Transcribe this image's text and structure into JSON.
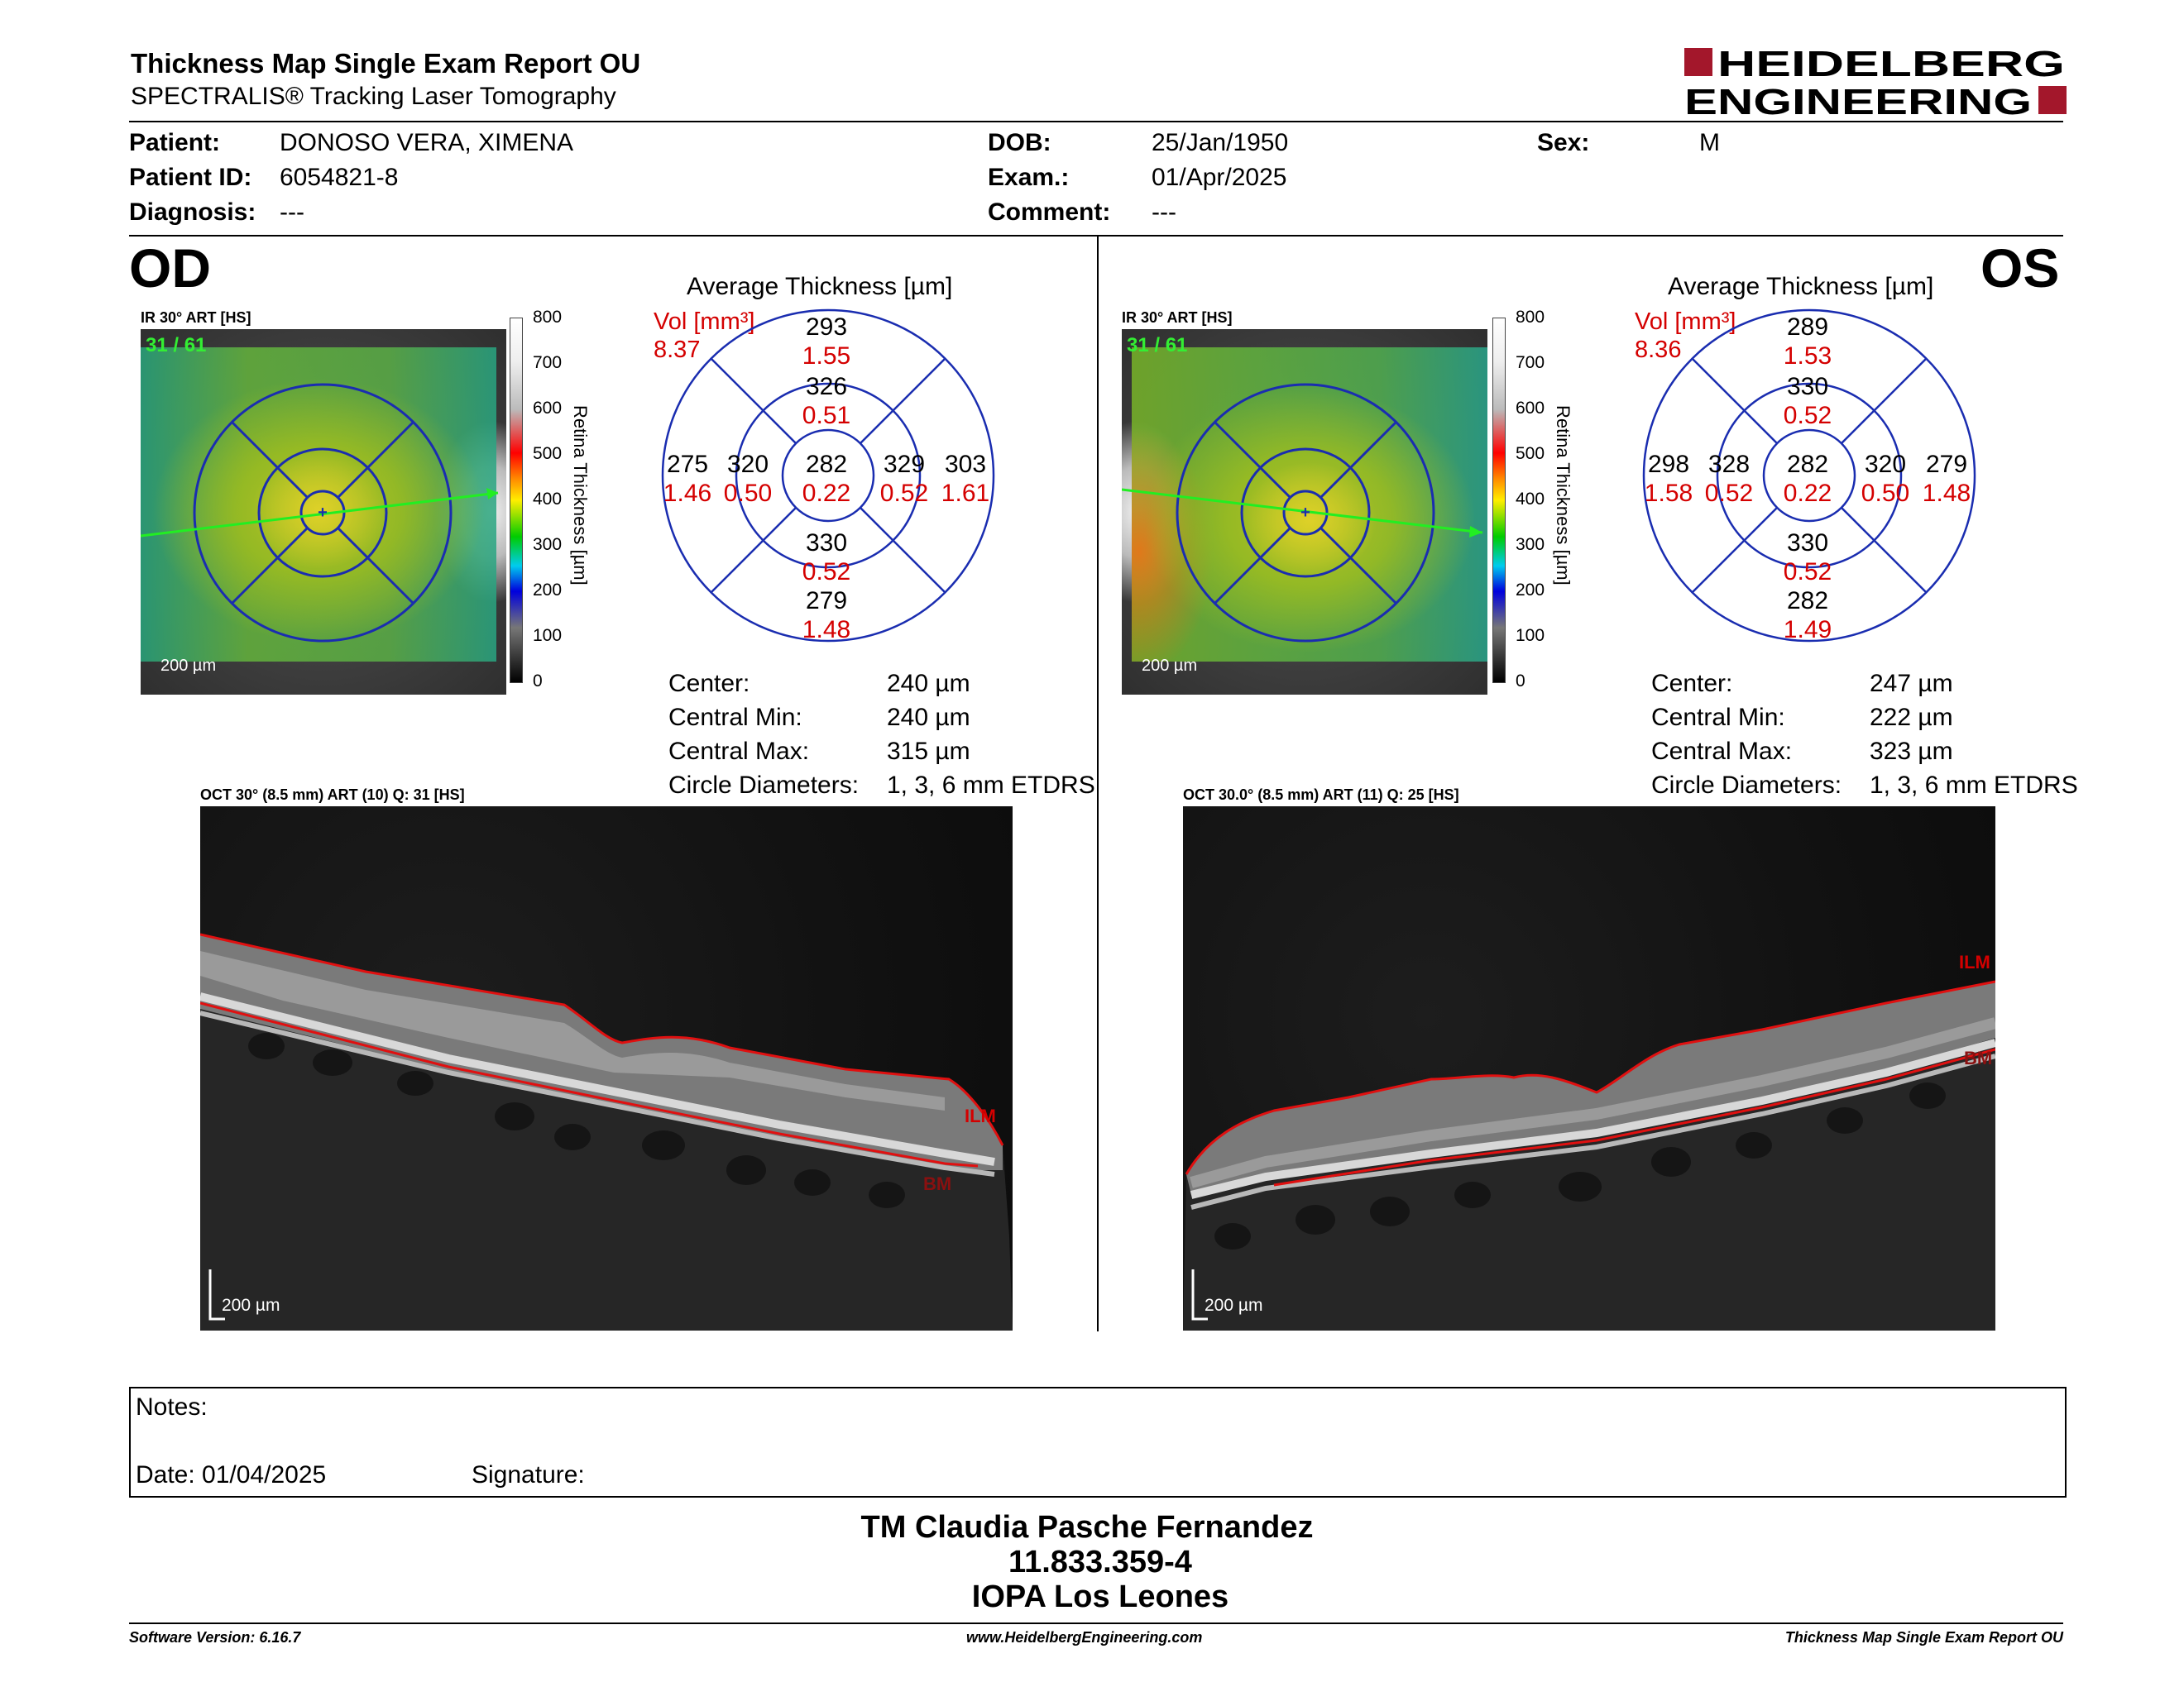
{
  "header": {
    "title": "Thickness Map Single Exam Report OU",
    "subtitle": "SPECTRALIS® Tracking Laser Tomography",
    "logo_line1": "HEIDELBERG",
    "logo_line2": "ENGINEERING"
  },
  "patient": {
    "patient_label": "Patient:",
    "patient_value": "DONOSO VERA, XIMENA",
    "id_label": "Patient ID:",
    "id_value": "6054821-8",
    "diagnosis_label": "Diagnosis:",
    "diagnosis_value": "---",
    "dob_label": "DOB:",
    "dob_value": "25/Jan/1950",
    "exam_label": "Exam.:",
    "exam_value": "01/Apr/2025",
    "comment_label": "Comment:",
    "comment_value": "---",
    "sex_label": "Sex:",
    "sex_value": "M"
  },
  "colorbar": {
    "ticks": [
      "800",
      "700",
      "600",
      "500",
      "400",
      "300",
      "200",
      "100",
      "0"
    ],
    "label": "Retina  Thickness [µm]"
  },
  "od": {
    "eye": "OD",
    "ir_caption": "IR 30° ART [HS]",
    "ir_count": "31 / 61",
    "ir_scale": "200 µm",
    "avg_title": "Average Thickness [µm]",
    "vol_label": "Vol [mm³]",
    "vol_value": "8.37",
    "grid": {
      "outer_top": "293",
      "outer_top_vol": "1.55",
      "inner_top": "326",
      "inner_top_vol": "0.51",
      "outer_left": "275",
      "outer_left_vol": "1.46",
      "inner_left": "320",
      "inner_left_vol": "0.50",
      "center": "282",
      "center_vol": "0.22",
      "inner_right": "329",
      "inner_right_vol": "0.52",
      "outer_right": "303",
      "outer_right_vol": "1.61",
      "inner_bottom": "330",
      "inner_bottom_vol": "0.52",
      "outer_bottom": "279",
      "outer_bottom_vol": "1.48"
    },
    "stats": {
      "center_label": "Center:",
      "center_value": "240 µm",
      "cmin_label": "Central Min:",
      "cmin_value": "240 µm",
      "cmax_label": "Central Max:",
      "cmax_value": "315 µm",
      "diam_label": "Circle Diameters:",
      "diam_value": "1, 3, 6 mm ETDRS"
    },
    "oct_caption": "OCT 30° (8.5 mm) ART (10) Q: 31 [HS]",
    "oct_scale": "200 µm",
    "ilm": "ILM",
    "bm": "BM"
  },
  "os": {
    "eye": "OS",
    "ir_caption": "IR 30° ART [HS]",
    "ir_count": "31 / 61",
    "ir_scale": "200 µm",
    "avg_title": "Average Thickness [µm]",
    "vol_label": "Vol [mm³]",
    "vol_value": "8.36",
    "grid": {
      "outer_top": "289",
      "outer_top_vol": "1.53",
      "inner_top": "330",
      "inner_top_vol": "0.52",
      "outer_left": "298",
      "outer_left_vol": "1.58",
      "inner_left": "328",
      "inner_left_vol": "0.52",
      "center": "282",
      "center_vol": "0.22",
      "inner_right": "320",
      "inner_right_vol": "0.50",
      "outer_right": "279",
      "outer_right_vol": "1.48",
      "inner_bottom": "330",
      "inner_bottom_vol": "0.52",
      "outer_bottom": "282",
      "outer_bottom_vol": "1.49"
    },
    "stats": {
      "center_label": "Center:",
      "center_value": "247 µm",
      "cmin_label": "Central Min:",
      "cmin_value": "222 µm",
      "cmax_label": "Central Max:",
      "cmax_value": "323 µm",
      "diam_label": "Circle Diameters:",
      "diam_value": "1, 3, 6 mm ETDRS"
    },
    "oct_caption": "OCT 30.0° (8.5 mm) ART (11) Q: 25 [HS]",
    "oct_scale": "200 µm",
    "ilm": "ILM",
    "bm": "BM"
  },
  "notes": {
    "notes_label": "Notes:",
    "date_label": "Date: 01/04/2025",
    "signature_label": "Signature:"
  },
  "signature_block": {
    "name": "TM Claudia Pasche Fernandez",
    "rut": "11.833.359-4",
    "place": "IOPA Los Leones"
  },
  "footer": {
    "software": "Software Version: 6.16.7",
    "website": "www.HeidelbergEngineering.com",
    "report": "Thickness Map Single Exam Report OU"
  },
  "colors": {
    "red_text": "#d40000",
    "grid_blue": "#1a2db0",
    "logo_red": "#a3172b",
    "ilm_line": "#e01010",
    "scan_green": "#22ee22"
  }
}
